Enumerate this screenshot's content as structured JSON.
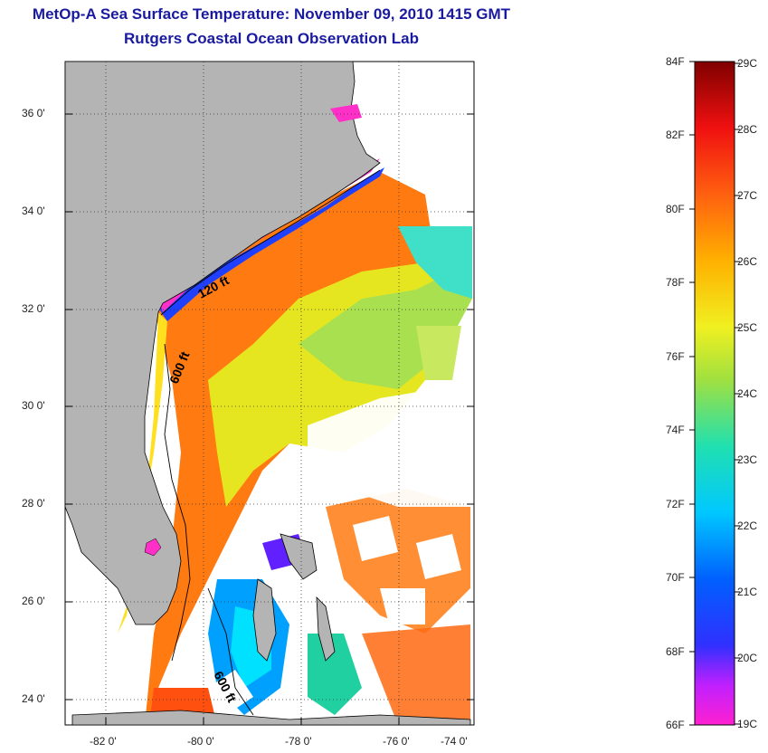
{
  "header": {
    "title": "MetOp-A Sea Surface Temperature:  November 09, 2010 1415 GMT",
    "subtitle": "Rutgers Coastal Ocean Observation Lab"
  },
  "map": {
    "lat_labels": [
      "36 0'",
      "34 0'",
      "32 0'",
      "30 0'",
      "28 0'",
      "26 0'",
      "24 0'"
    ],
    "lon_labels": [
      "-82 0'",
      "-80 0'",
      "-78 0'",
      "-76 0'",
      "-74 0'"
    ],
    "contour_labels": [
      "120 ft",
      "600 ft",
      "600 ft"
    ],
    "extent": {
      "lon": [
        -83,
        -73
      ],
      "lat": [
        23,
        37
      ]
    },
    "land_color": "#b4b4b4",
    "cloud_color": "#ffffff"
  },
  "colorbar": {
    "f_labels": [
      "84F",
      "82F",
      "80F",
      "78F",
      "76F",
      "74F",
      "72F",
      "70F",
      "68F",
      "66F"
    ],
    "c_labels": [
      "29C",
      "28C",
      "27C",
      "26C",
      "25C",
      "24C",
      "23C",
      "22C",
      "21C",
      "20C",
      "19C"
    ],
    "range_f": [
      66,
      84
    ],
    "range_c": [
      19,
      29
    ]
  }
}
